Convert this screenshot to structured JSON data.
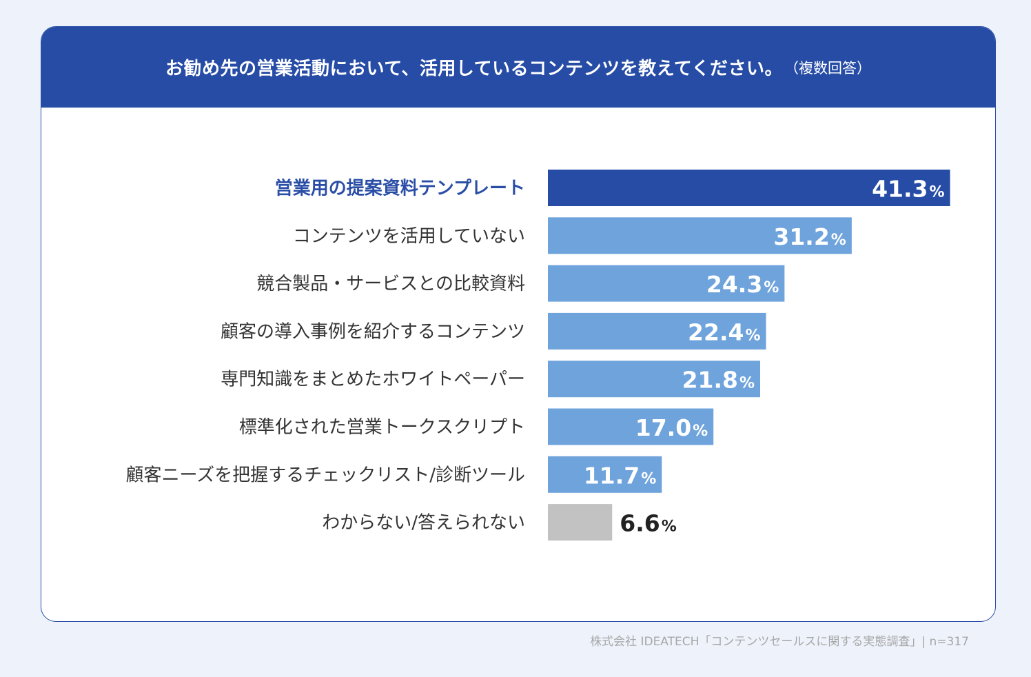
{
  "header": {
    "title": "お勧め先の営業活動において、活用しているコンテンツを教えてください。",
    "subtitle": "（複数回答）"
  },
  "source": "株式会社 IDEATECH「コンテンツセールスに関する実態調査」| n=317",
  "colors": {
    "header_bg": "#264ca6",
    "highlight_bar": "#264ca6",
    "normal_bar": "#6fa3dc",
    "other_bar": "#c2c2c2",
    "highlight_label": "#2a4ea6"
  },
  "chart_data": {
    "type": "bar",
    "orientation": "horizontal",
    "title": "お勧め先の営業活動において、活用しているコンテンツを教えてください。（複数回答）",
    "unit": "%",
    "xlim": [
      0,
      45
    ],
    "categories": [
      "営業用の提案資料テンプレート",
      "コンテンツを活用していない",
      "競合製品・サービスとの比較資料",
      "顧客の導入事例を紹介するコンテンツ",
      "専門知識をまとめたホワイトペーパー",
      "標準化された営業トークスクリプト",
      "顧客ニーズを把握するチェックリスト/診断ツール",
      "わからない/答えられない"
    ],
    "values": [
      41.3,
      31.2,
      24.3,
      22.4,
      21.8,
      17.0,
      11.7,
      6.6
    ],
    "value_labels": [
      "41.3",
      "31.2",
      "24.3",
      "22.4",
      "21.8",
      "17.0",
      "11.7",
      "6.6"
    ],
    "styles": [
      "highlight",
      "normal",
      "normal",
      "normal",
      "normal",
      "normal",
      "normal",
      "other"
    ]
  }
}
